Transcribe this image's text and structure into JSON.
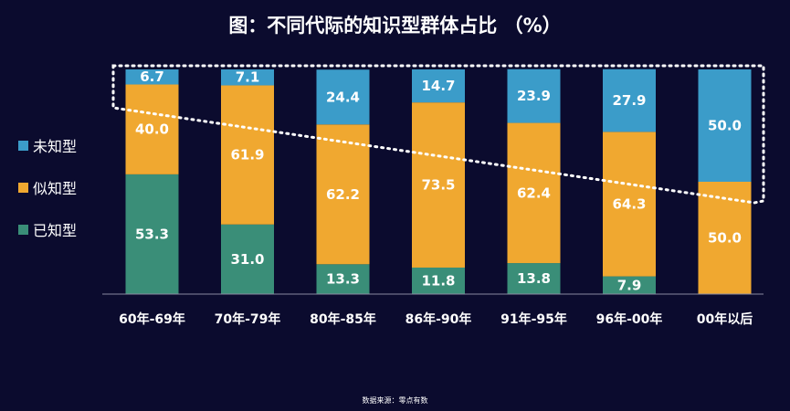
{
  "page": {
    "title": "图：不同代际的知识型群体占比 （%）",
    "source": "数据来源：零点有数"
  },
  "chart_data": {
    "type": "bar",
    "stacked": true,
    "title": "图：不同代际的知识型群体占比 （%）",
    "categories": [
      "60年-69年",
      "70年-79年",
      "80年-85年",
      "86年-90年",
      "91年-95年",
      "96年-00年",
      "00年以后"
    ],
    "series": [
      {
        "name": "已知型",
        "color": "#3a8e78",
        "values": [
          53.3,
          31.0,
          13.3,
          11.8,
          13.8,
          7.9,
          null
        ]
      },
      {
        "name": "似知型",
        "color": "#f0a830",
        "values": [
          40.0,
          61.9,
          62.2,
          73.5,
          62.4,
          64.3,
          50.0
        ]
      },
      {
        "name": "未知型",
        "color": "#3b9cc9",
        "values": [
          6.7,
          7.1,
          24.4,
          14.7,
          23.9,
          27.9,
          50.0
        ]
      }
    ],
    "legend_order": [
      "未知型",
      "似知型",
      "已知型"
    ],
    "ylim": [
      0,
      100
    ],
    "legend_position": "left",
    "grid": false,
    "annotation": "dotted outline around 未知型 segments"
  }
}
